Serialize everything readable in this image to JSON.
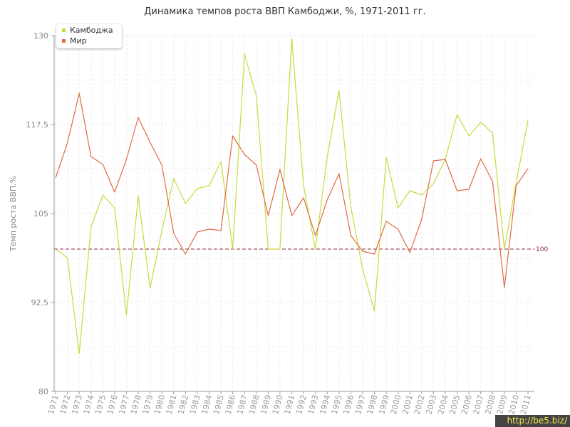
{
  "chart_data": {
    "type": "line",
    "title": "Динамика темпов роста ВВП Камбоджи, %, 1971-2011 гг.",
    "ylabel": "Темп роста ВВП,%",
    "xlabel": "",
    "ylim": [
      80,
      130
    ],
    "yticks": [
      "130",
      "117.5",
      "105",
      "92.5",
      "80"
    ],
    "reference_line": {
      "value": 100,
      "label": "100",
      "color": "#8b2942"
    },
    "legend_position": "top-left",
    "grid": true,
    "categories": [
      "1971",
      "1972",
      "1973",
      "1974",
      "1975",
      "1976",
      "1977",
      "1978",
      "1979",
      "1980",
      "1981",
      "1982",
      "1983",
      "1984",
      "1985",
      "1986",
      "1987",
      "1988",
      "1989",
      "1990",
      "1991",
      "1992",
      "1993",
      "1994",
      "1995",
      "1996",
      "1997",
      "1998",
      "1999",
      "2000",
      "2001",
      "2002",
      "2003",
      "2004",
      "2005",
      "2006",
      "2007",
      "2008",
      "2009",
      "2010",
      "2011"
    ],
    "series": [
      {
        "name": "Камбоджа",
        "color": "#c4dc3c",
        "values": [
          100.0,
          98.8,
          85.3,
          103.1,
          107.6,
          105.8,
          90.7,
          107.4,
          94.5,
          102.6,
          109.9,
          106.4,
          108.5,
          108.9,
          112.3,
          100.0,
          127.4,
          121.5,
          100.0,
          100.0,
          129.6,
          108.9,
          100.0,
          112.9,
          122.3,
          105.9,
          97.2,
          91.3,
          112.9,
          105.8,
          108.2,
          107.6,
          109.2,
          112.6,
          118.9,
          115.9,
          117.8,
          116.3,
          100.0,
          109.3,
          118.1
        ]
      },
      {
        "name": "Мир",
        "color": "#e06b44",
        "values": [
          110.0,
          114.9,
          121.9,
          113.0,
          111.9,
          108.0,
          112.6,
          118.5,
          115.0,
          111.8,
          102.2,
          99.3,
          102.4,
          102.8,
          102.6,
          115.9,
          113.3,
          111.8,
          104.7,
          111.2,
          104.7,
          107.2,
          101.9,
          106.9,
          110.6,
          101.9,
          99.7,
          99.3,
          103.9,
          102.8,
          99.5,
          104.2,
          112.4,
          112.6,
          108.2,
          108.4,
          112.7,
          109.5,
          94.6,
          108.9,
          111.3
        ]
      }
    ]
  },
  "watermark": "http://be5.biz/"
}
